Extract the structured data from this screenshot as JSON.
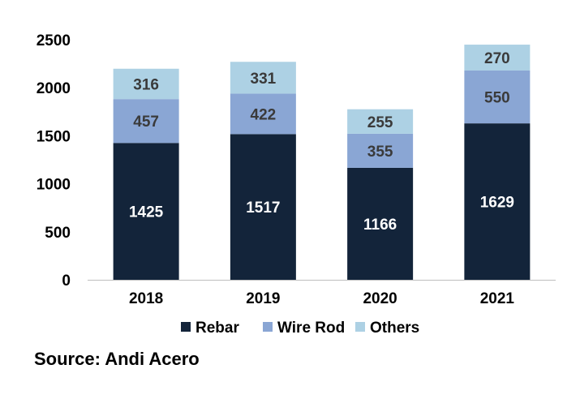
{
  "chart_data": {
    "type": "bar",
    "stacked": true,
    "categories": [
      "2018",
      "2019",
      "2020",
      "2021"
    ],
    "series": [
      {
        "name": "Rebar",
        "values": [
          1425,
          1517,
          1166,
          1629
        ],
        "color": "#13243a",
        "label_color": "#ffffff"
      },
      {
        "name": "Wire Rod",
        "values": [
          457,
          422,
          355,
          550
        ],
        "color": "#8aa6d4",
        "label_color": "#3a3a3a"
      },
      {
        "name": "Others",
        "values": [
          316,
          331,
          255,
          270
        ],
        "color": "#add1e4",
        "label_color": "#3a3a3a"
      }
    ],
    "y_ticks": [
      "0",
      "500",
      "1000",
      "1500",
      "2000",
      "2500"
    ],
    "ylim": [
      0,
      2500
    ],
    "grid": false,
    "legend_position": "bottom"
  },
  "source": "Source: Andi Acero"
}
